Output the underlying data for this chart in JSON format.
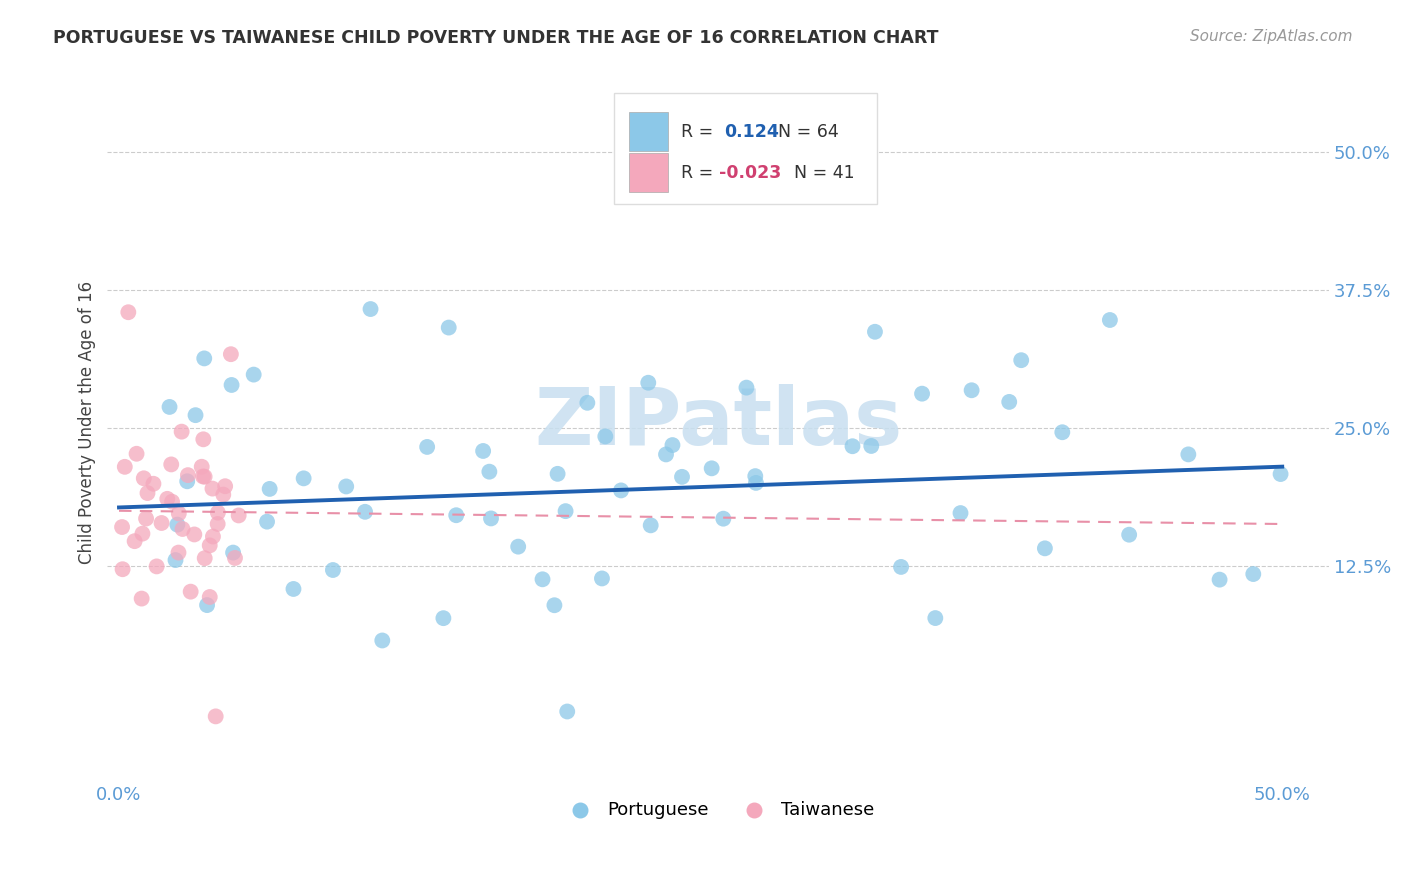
{
  "title": "PORTUGUESE VS TAIWANESE CHILD POVERTY UNDER THE AGE OF 16 CORRELATION CHART",
  "source": "Source: ZipAtlas.com",
  "ylabel": "Child Poverty Under the Age of 16",
  "portuguese_color": "#8CC8E8",
  "taiwanese_color": "#F4A8BC",
  "portuguese_line_color": "#2060B0",
  "taiwanese_line_color": "#E890A8",
  "watermark_text": "ZIPatlas",
  "watermark_color": "#C8DFF0",
  "r1_label": "R =  0.124   N = 64",
  "r2_label": "R = -0.023   N = 41",
  "r1_color": "#2060B0",
  "r2_color": "#D04070",
  "xlim": [
    -0.005,
    0.52
  ],
  "ylim": [
    -0.07,
    0.58
  ],
  "xticks": [
    0.0,
    0.5
  ],
  "xtick_labels": [
    "0.0%",
    "50.0%"
  ],
  "yticks": [
    0.125,
    0.25,
    0.375,
    0.5
  ],
  "ytick_labels": [
    "12.5%",
    "25.0%",
    "37.5%",
    "50.0%"
  ],
  "grid_color": "#CCCCCC",
  "port_line_x": [
    0.0,
    0.5
  ],
  "port_line_y": [
    0.178,
    0.215
  ],
  "tai_line_x": [
    0.0,
    0.5
  ],
  "tai_line_y": [
    0.175,
    0.163
  ]
}
